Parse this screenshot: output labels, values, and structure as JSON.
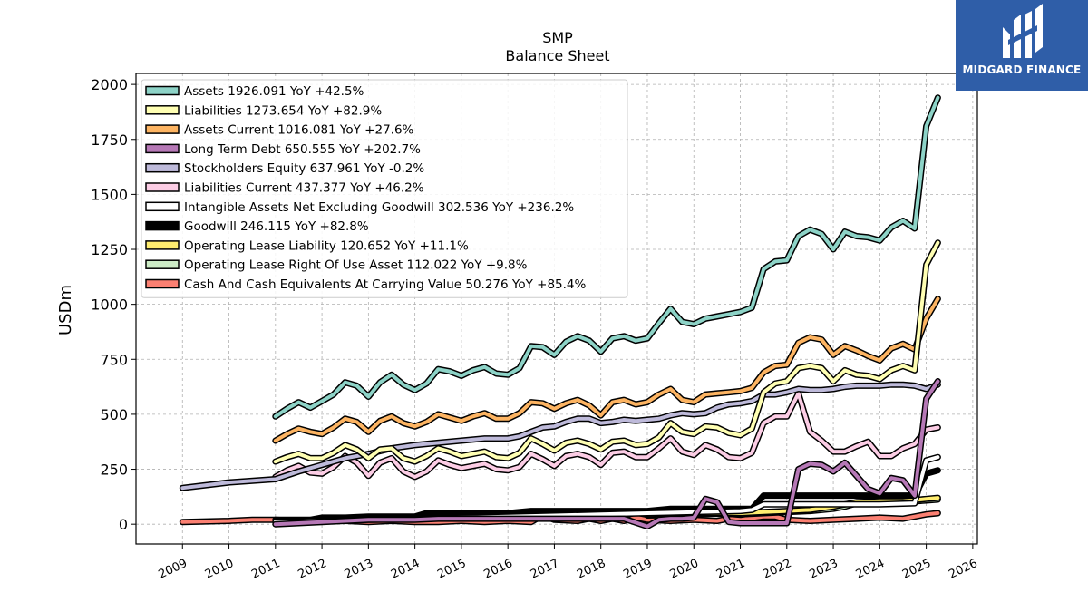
{
  "chart_data": {
    "type": "line",
    "title": "SMP",
    "subtitle": "Balance  Sheet",
    "ylabel": "USDm",
    "ylim": [
      -90,
      2050
    ],
    "xlim": [
      2008.0,
      2026.1
    ],
    "yticks": [
      0,
      250,
      500,
      750,
      1000,
      1250,
      1500,
      1750,
      2000
    ],
    "xticks": [
      "2009",
      "2010",
      "2011",
      "2012",
      "2013",
      "2014",
      "2015",
      "2016",
      "2017",
      "2018",
      "2019",
      "2020",
      "2021",
      "2022",
      "2023",
      "2024",
      "2025",
      "2026"
    ],
    "grid": true,
    "legend_position": "top-left",
    "series": [
      {
        "name": "Assets  1926.091 YoY +42.5%",
        "color": "#8dd3c7",
        "x": [
          2011.0,
          2011.25,
          2011.5,
          2011.75,
          2012.0,
          2012.25,
          2012.5,
          2012.75,
          2013.0,
          2013.25,
          2013.5,
          2013.75,
          2014.0,
          2014.25,
          2014.5,
          2014.75,
          2015.0,
          2015.25,
          2015.5,
          2015.75,
          2016.0,
          2016.25,
          2016.5,
          2016.75,
          2017.0,
          2017.25,
          2017.5,
          2017.75,
          2018.0,
          2018.25,
          2018.5,
          2018.75,
          2019.0,
          2019.25,
          2019.5,
          2019.75,
          2020.0,
          2020.25,
          2020.5,
          2020.75,
          2021.0,
          2021.25,
          2021.5,
          2021.75,
          2022.0,
          2022.25,
          2022.5,
          2022.75,
          2023.0,
          2023.25,
          2023.5,
          2023.75,
          2024.0,
          2024.25,
          2024.5,
          2024.75,
          2025.0,
          2025.25
        ],
        "y": [
          490,
          525,
          555,
          530,
          560,
          590,
          645,
          630,
          580,
          645,
          680,
          635,
          610,
          640,
          705,
          695,
          675,
          700,
          715,
          685,
          680,
          710,
          810,
          805,
          770,
          830,
          855,
          835,
          785,
          845,
          855,
          835,
          845,
          915,
          980,
          920,
          910,
          935,
          945,
          955,
          965,
          985,
          1160,
          1195,
          1200,
          1310,
          1340,
          1320,
          1250,
          1330,
          1310,
          1305,
          1290,
          1350,
          1380,
          1345,
          1810,
          1940
        ]
      },
      {
        "name": "Liabilities  1273.654 YoY +82.9%",
        "color": "#ffffb3",
        "x": [
          2011.0,
          2011.25,
          2011.5,
          2011.75,
          2012.0,
          2012.25,
          2012.5,
          2012.75,
          2013.0,
          2013.25,
          2013.5,
          2013.75,
          2014.0,
          2014.25,
          2014.5,
          2014.75,
          2015.0,
          2015.25,
          2015.5,
          2015.75,
          2016.0,
          2016.25,
          2016.5,
          2016.75,
          2017.0,
          2017.25,
          2017.5,
          2017.75,
          2018.0,
          2018.25,
          2018.5,
          2018.75,
          2019.0,
          2019.25,
          2019.5,
          2019.75,
          2020.0,
          2020.25,
          2020.5,
          2020.75,
          2021.0,
          2021.25,
          2021.5,
          2021.75,
          2022.0,
          2022.25,
          2022.5,
          2022.75,
          2023.0,
          2023.25,
          2023.5,
          2023.75,
          2024.0,
          2024.25,
          2024.5,
          2024.75,
          2025.0,
          2025.25
        ],
        "y": [
          285,
          305,
          320,
          300,
          300,
          325,
          360,
          340,
          300,
          340,
          345,
          300,
          285,
          310,
          345,
          330,
          310,
          320,
          330,
          305,
          300,
          325,
          390,
          365,
          335,
          370,
          380,
          365,
          340,
          375,
          380,
          360,
          365,
          395,
          460,
          420,
          410,
          445,
          440,
          415,
          405,
          435,
          600,
          640,
          650,
          710,
          720,
          710,
          650,
          700,
          680,
          675,
          660,
          700,
          720,
          700,
          1180,
          1280
        ]
      },
      {
        "name": "Assets Current  1016.081 YoY +27.6%",
        "color": "#fdb462",
        "x": [
          2011.0,
          2011.25,
          2011.5,
          2011.75,
          2012.0,
          2012.25,
          2012.5,
          2012.75,
          2013.0,
          2013.25,
          2013.5,
          2013.75,
          2014.0,
          2014.25,
          2014.5,
          2014.75,
          2015.0,
          2015.25,
          2015.5,
          2015.75,
          2016.0,
          2016.25,
          2016.5,
          2016.75,
          2017.0,
          2017.25,
          2017.5,
          2017.75,
          2018.0,
          2018.25,
          2018.5,
          2018.75,
          2019.0,
          2019.25,
          2019.5,
          2019.75,
          2020.0,
          2020.25,
          2020.5,
          2020.75,
          2021.0,
          2021.25,
          2021.5,
          2021.75,
          2022.0,
          2022.25,
          2022.5,
          2022.75,
          2023.0,
          2023.25,
          2023.5,
          2023.75,
          2024.0,
          2024.25,
          2024.5,
          2024.75,
          2025.0,
          2025.25
        ],
        "y": [
          380,
          410,
          435,
          420,
          410,
          440,
          480,
          465,
          420,
          470,
          490,
          460,
          445,
          465,
          500,
          485,
          470,
          490,
          505,
          480,
          480,
          505,
          555,
          550,
          525,
          550,
          565,
          540,
          495,
          555,
          565,
          545,
          555,
          590,
          615,
          565,
          555,
          590,
          595,
          600,
          605,
          620,
          690,
          720,
          725,
          825,
          850,
          840,
          770,
          810,
          790,
          765,
          745,
          800,
          820,
          795,
          935,
          1025
        ]
      },
      {
        "name": "Long Term Debt  650.555 YoY +202.7%",
        "color": "#b678b6",
        "x": [
          2011.0,
          2011.5,
          2012.0,
          2012.5,
          2013.0,
          2013.5,
          2014.0,
          2014.5,
          2015.0,
          2015.5,
          2016.0,
          2016.5,
          2017.0,
          2017.5,
          2018.0,
          2018.5,
          2019.0,
          2019.25,
          2019.5,
          2019.75,
          2020.0,
          2020.25,
          2020.5,
          2020.75,
          2021.0,
          2021.25,
          2021.5,
          2021.75,
          2022.0,
          2022.25,
          2022.5,
          2022.75,
          2023.0,
          2023.25,
          2023.5,
          2023.75,
          2024.0,
          2024.25,
          2024.5,
          2024.75,
          2025.0,
          2025.25
        ],
        "y": [
          0,
          5,
          10,
          15,
          20,
          20,
          20,
          25,
          25,
          25,
          25,
          25,
          25,
          25,
          25,
          25,
          -10,
          20,
          25,
          25,
          30,
          115,
          100,
          10,
          5,
          5,
          5,
          5,
          5,
          250,
          275,
          270,
          240,
          280,
          220,
          160,
          140,
          210,
          200,
          130,
          570,
          650
        ]
      },
      {
        "name": "Stockholders Equity  637.961 YoY -0.2%",
        "color": "#bebada",
        "x": [
          2009.0,
          2010.0,
          2011.0,
          2011.5,
          2012.0,
          2012.5,
          2013.0,
          2013.5,
          2014.0,
          2014.5,
          2015.0,
          2015.5,
          2016.0,
          2016.25,
          2016.5,
          2016.75,
          2017.0,
          2017.25,
          2017.5,
          2017.75,
          2018.0,
          2018.25,
          2018.5,
          2018.75,
          2019.0,
          2019.25,
          2019.5,
          2019.75,
          2020.0,
          2020.25,
          2020.5,
          2020.75,
          2021.0,
          2021.25,
          2021.5,
          2021.75,
          2022.0,
          2022.25,
          2022.5,
          2022.75,
          2023.0,
          2023.25,
          2023.5,
          2023.75,
          2024.0,
          2024.25,
          2024.5,
          2024.75,
          2025.0,
          2025.25
        ],
        "y": [
          165,
          190,
          205,
          240,
          270,
          300,
          320,
          345,
          360,
          370,
          380,
          390,
          390,
          400,
          420,
          440,
          445,
          465,
          480,
          480,
          460,
          465,
          475,
          470,
          475,
          480,
          495,
          505,
          500,
          505,
          530,
          545,
          550,
          560,
          590,
          590,
          600,
          615,
          610,
          610,
          615,
          625,
          630,
          630,
          630,
          635,
          635,
          630,
          615,
          635
        ]
      },
      {
        "name": "Liabilities Current  437.377 YoY +46.2%",
        "color": "#fccde5",
        "x": [
          2011.0,
          2011.25,
          2011.5,
          2011.75,
          2012.0,
          2012.25,
          2012.5,
          2012.75,
          2013.0,
          2013.25,
          2013.5,
          2013.75,
          2014.0,
          2014.25,
          2014.5,
          2014.75,
          2015.0,
          2015.25,
          2015.5,
          2015.75,
          2016.0,
          2016.25,
          2016.5,
          2016.75,
          2017.0,
          2017.25,
          2017.5,
          2017.75,
          2018.0,
          2018.25,
          2018.5,
          2018.75,
          2019.0,
          2019.25,
          2019.5,
          2019.75,
          2020.0,
          2020.25,
          2020.5,
          2020.75,
          2021.0,
          2021.25,
          2021.5,
          2021.75,
          2022.0,
          2022.25,
          2022.5,
          2022.75,
          2023.0,
          2023.25,
          2023.5,
          2023.75,
          2024.0,
          2024.25,
          2024.5,
          2024.75,
          2025.0,
          2025.25
        ],
        "y": [
          215,
          245,
          265,
          235,
          230,
          260,
          310,
          280,
          220,
          280,
          300,
          240,
          215,
          240,
          290,
          270,
          255,
          265,
          275,
          250,
          245,
          260,
          320,
          295,
          265,
          310,
          320,
          305,
          270,
          325,
          330,
          305,
          305,
          345,
          390,
          330,
          315,
          360,
          340,
          305,
          300,
          325,
          460,
          490,
          490,
          595,
          420,
          380,
          330,
          330,
          355,
          375,
          310,
          310,
          345,
          365,
          430,
          440
        ]
      },
      {
        "name": "Intangible Assets Net Excluding Goodwill  302.536 YoY +236.2%",
        "color": "#ffffff",
        "x": [
          2011.0,
          2012.0,
          2013.0,
          2014.0,
          2015.0,
          2016.0,
          2017.0,
          2018.0,
          2019.0,
          2020.0,
          2021.0,
          2021.25,
          2021.5,
          2022.0,
          2023.0,
          2024.0,
          2024.75,
          2025.0,
          2025.25
        ],
        "y": [
          10,
          15,
          20,
          25,
          30,
          35,
          40,
          45,
          50,
          55,
          60,
          65,
          90,
          90,
          90,
          90,
          95,
          290,
          305
        ]
      },
      {
        "name": "Goodwill  246.115 YoY +82.8%",
        "color": "#000000",
        "x": [
          2011.0,
          2011.75,
          2012.0,
          2012.5,
          2013.0,
          2013.5,
          2014.0,
          2014.25,
          2015.0,
          2016.0,
          2016.5,
          2017.0,
          2018.0,
          2019.0,
          2019.5,
          2020.0,
          2020.5,
          2021.0,
          2021.25,
          2021.5,
          2022.0,
          2023.0,
          2024.0,
          2024.75,
          2025.0,
          2025.25
        ],
        "y": [
          20,
          20,
          30,
          30,
          35,
          35,
          35,
          50,
          50,
          50,
          60,
          60,
          60,
          60,
          70,
          70,
          70,
          70,
          70,
          130,
          130,
          130,
          130,
          130,
          230,
          245
        ]
      },
      {
        "name": "Operating Lease Liability  120.652 YoY +11.1%",
        "color": "#ffed6f",
        "x": [
          2019.0,
          2019.5,
          2020.0,
          2020.5,
          2021.0,
          2021.5,
          2022.0,
          2022.5,
          2023.0,
          2023.25,
          2023.5,
          2024.0,
          2024.5,
          2025.0,
          2025.25
        ],
        "y": [
          45,
          48,
          50,
          52,
          50,
          55,
          60,
          65,
          80,
          90,
          100,
          105,
          105,
          115,
          120
        ]
      },
      {
        "name": "Operating Lease Right Of Use Asset  112.022 YoY +9.8%",
        "color": "#ccebc5",
        "x": [
          2019.0,
          2019.5,
          2020.0,
          2020.5,
          2021.0,
          2021.5,
          2022.0,
          2022.5,
          2023.0,
          2023.25,
          2023.5,
          2024.0,
          2024.5,
          2025.0,
          2025.25
        ],
        "y": [
          40,
          42,
          45,
          48,
          45,
          50,
          55,
          60,
          70,
          80,
          95,
          100,
          100,
          108,
          112
        ]
      },
      {
        "name": "Cash And Cash Equivalents At Carrying Value  50.276 YoY +85.4%",
        "color": "#fb8072",
        "x": [
          2009.0,
          2010.0,
          2010.5,
          2011.0,
          2011.5,
          2012.0,
          2012.5,
          2013.0,
          2013.5,
          2014.0,
          2014.5,
          2015.0,
          2015.5,
          2016.0,
          2016.5,
          2016.75,
          2017.0,
          2017.5,
          2017.75,
          2018.0,
          2018.25,
          2018.5,
          2018.75,
          2019.0,
          2019.5,
          2020.0,
          2020.5,
          2020.75,
          2021.0,
          2021.5,
          2021.75,
          2022.0,
          2022.5,
          2023.0,
          2023.5,
          2024.0,
          2024.5,
          2025.0,
          2025.25
        ],
        "y": [
          10,
          15,
          20,
          20,
          15,
          15,
          15,
          10,
          15,
          10,
          10,
          15,
          10,
          15,
          10,
          40,
          20,
          15,
          25,
          15,
          25,
          15,
          30,
          20,
          15,
          20,
          15,
          25,
          20,
          35,
          35,
          20,
          15,
          20,
          25,
          30,
          25,
          45,
          50
        ]
      }
    ]
  },
  "logo": {
    "brand": "MIDGARD FINANCE"
  }
}
